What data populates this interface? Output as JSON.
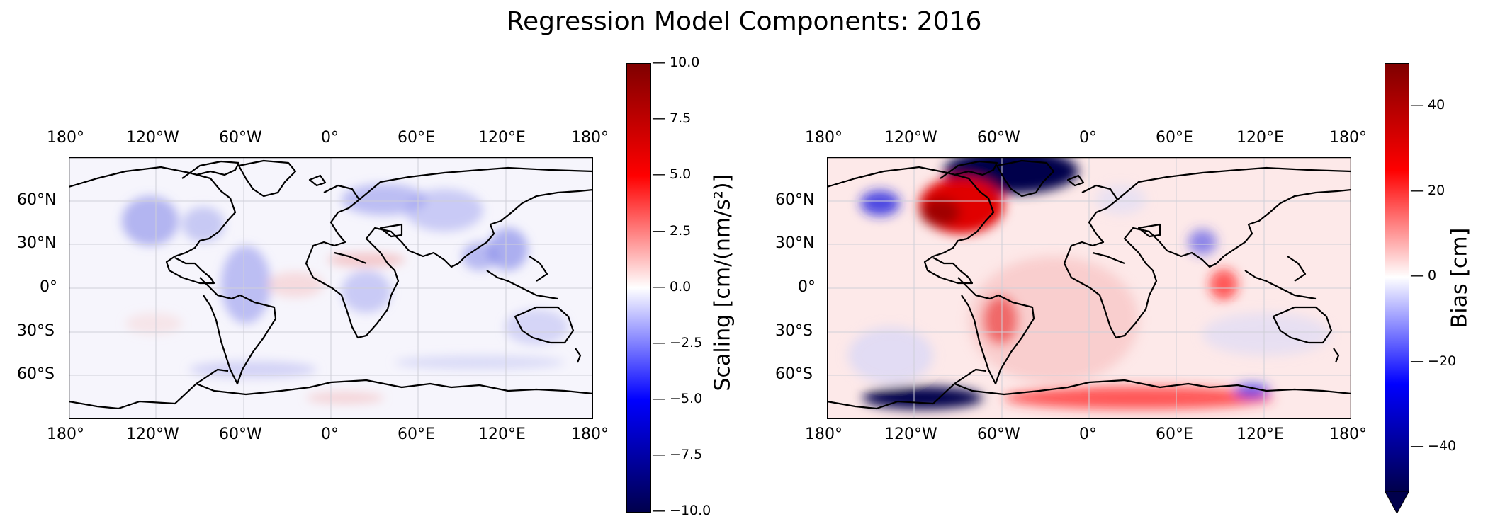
{
  "figure": {
    "title": "Regression Model Components: 2016"
  },
  "panels": [
    {
      "id": "scaling",
      "lon_ticks": [
        "180°",
        "120°W",
        "60°W",
        "0°",
        "60°E",
        "120°E",
        "180°"
      ],
      "lat_ticks": [
        "60°N",
        "30°N",
        "0°",
        "30°S",
        "60°S"
      ],
      "colorbar": {
        "label": "Scaling [cm/(nm/s²)]",
        "cmap": "seismic",
        "range": [
          -10,
          10
        ],
        "ticks": [
          "10.0",
          "7.5",
          "5.0",
          "2.5",
          "0.0",
          "−2.5",
          "−5.0",
          "−7.5",
          "−10.0"
        ],
        "extend": "neither"
      }
    },
    {
      "id": "bias",
      "lon_ticks": [
        "180°",
        "120°W",
        "60°W",
        "0°",
        "60°E",
        "120°E",
        "180°"
      ],
      "lat_ticks": [
        "60°N",
        "30°N",
        "0°",
        "30°S",
        "60°S"
      ],
      "colorbar": {
        "label": "Bias [cm]",
        "cmap": "seismic",
        "range": [
          -50,
          50
        ],
        "ticks": [
          "40",
          "20",
          "0",
          "−20",
          "−40"
        ],
        "extend": "min"
      }
    }
  ],
  "colors": {
    "cmap_low": "#00004c",
    "cmap_mid": "#ffffff",
    "cmap_high": "#7f0000",
    "coast": "#000000",
    "grid": "#c8c8c8"
  }
}
